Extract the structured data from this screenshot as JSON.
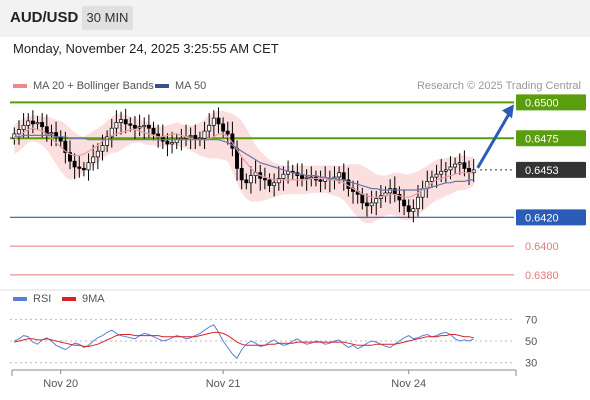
{
  "header": {
    "pair": "AUD/USD",
    "timeframe": "30 MIN",
    "datetime": "Monday, November 24, 2025 3:25:55 AM CET"
  },
  "legend": {
    "bollinger_label": "MA 20 + Bollinger Bands",
    "ma50_label": "MA 50",
    "credit": "Research © 2025 Trading Central",
    "rsi_label": "RSI",
    "rsi_ma_label": "9MA"
  },
  "colors": {
    "resistance": "#5a9e0f",
    "support": "#2a5cb8",
    "target_low": "#e37b7b",
    "bull_candle": "#ffffff",
    "bear_candle": "#000000",
    "bollinger_fill": "#f9d0d0",
    "ma20": "#e9a0a0",
    "ma50": "#6a78a8",
    "rsi": "#5b7ed6",
    "rsi_ma": "#d8232a",
    "arrow": "#2a5cb8",
    "current_price_bg": "#333333"
  },
  "chart_data": [
    {
      "type": "candlestick",
      "x_labels": [
        "Nov 20",
        "Nov 21",
        "Nov 24"
      ],
      "price_levels": [
        {
          "label": "0.6500",
          "value": 0.65,
          "kind": "resistance"
        },
        {
          "label": "0.6475",
          "value": 0.6475,
          "kind": "resistance"
        },
        {
          "label": "0.6453",
          "value": 0.6453,
          "kind": "current"
        },
        {
          "label": "0.6420",
          "value": 0.642,
          "kind": "pivot"
        },
        {
          "label": "0.6400",
          "value": 0.64,
          "kind": "support"
        },
        {
          "label": "0.6380",
          "value": 0.638,
          "kind": "support"
        }
      ],
      "close": [
        0.6478,
        0.6481,
        0.6484,
        0.6487,
        0.6485,
        0.6486,
        0.6483,
        0.6478,
        0.6479,
        0.6476,
        0.6473,
        0.6465,
        0.6459,
        0.6455,
        0.6454,
        0.6453,
        0.6458,
        0.6462,
        0.6466,
        0.647,
        0.6476,
        0.6482,
        0.6486,
        0.6488,
        0.6485,
        0.6484,
        0.6482,
        0.6483,
        0.6484,
        0.6482,
        0.6478,
        0.6476,
        0.6473,
        0.6471,
        0.6472,
        0.6474,
        0.6475,
        0.6476,
        0.6477,
        0.6474,
        0.6475,
        0.648,
        0.6484,
        0.6489,
        0.6485,
        0.648,
        0.6478,
        0.6468,
        0.6454,
        0.6446,
        0.6444,
        0.6449,
        0.6451,
        0.6447,
        0.6446,
        0.6442,
        0.6444,
        0.6447,
        0.645,
        0.6452,
        0.6451,
        0.6449,
        0.6447,
        0.6448,
        0.6448,
        0.6446,
        0.6445,
        0.6447,
        0.6446,
        0.6448,
        0.6451,
        0.6446,
        0.644,
        0.6438,
        0.6436,
        0.643,
        0.6428,
        0.643,
        0.6433,
        0.6435,
        0.6437,
        0.644,
        0.6436,
        0.6432,
        0.6428,
        0.6424,
        0.6426,
        0.6434,
        0.644,
        0.6445,
        0.6448,
        0.645,
        0.6452,
        0.6453,
        0.6455,
        0.6457,
        0.6458,
        0.6454,
        0.6451,
        0.6453
      ],
      "ma20": [
        0.6474,
        0.6477,
        0.6479,
        0.6481,
        0.6482,
        0.6481,
        0.648,
        0.6478,
        0.6475,
        0.6472,
        0.6469,
        0.6466,
        0.6464,
        0.6463,
        0.6463,
        0.6464,
        0.6466,
        0.6468,
        0.647,
        0.6473,
        0.6475,
        0.6477,
        0.6478,
        0.6479,
        0.648,
        0.6481,
        0.6481,
        0.648,
        0.6479,
        0.6478,
        0.6477,
        0.6476,
        0.6476,
        0.6477,
        0.6478,
        0.6478,
        0.6477,
        0.6476,
        0.6475,
        0.6474,
        0.6474,
        0.6474,
        0.6475,
        0.6476,
        0.6478,
        0.6478,
        0.6476,
        0.6472,
        0.6467,
        0.6462,
        0.6458,
        0.6454,
        0.6451,
        0.6449,
        0.6448,
        0.6447,
        0.6446,
        0.6446,
        0.6446,
        0.6446,
        0.6446,
        0.6446,
        0.6446,
        0.6446,
        0.6447,
        0.6447,
        0.6447,
        0.6447,
        0.6446,
        0.6446,
        0.6445,
        0.6444,
        0.6442,
        0.644,
        0.6438,
        0.6436,
        0.6435,
        0.6434,
        0.6434,
        0.6434,
        0.6435,
        0.6436,
        0.6436,
        0.6435,
        0.6434,
        0.6434,
        0.6435,
        0.6437,
        0.6439,
        0.6441,
        0.6444,
        0.6446,
        0.6447,
        0.6448,
        0.6449,
        0.645,
        0.6451,
        0.6451,
        0.6451,
        0.6452
      ],
      "bb_upper": [
        0.6484,
        0.6487,
        0.6489,
        0.649,
        0.6491,
        0.6491,
        0.649,
        0.649,
        0.6489,
        0.6488,
        0.6487,
        0.6485,
        0.6482,
        0.6479,
        0.6477,
        0.6476,
        0.6478,
        0.648,
        0.6482,
        0.6484,
        0.6487,
        0.649,
        0.6492,
        0.6492,
        0.6491,
        0.649,
        0.6489,
        0.6488,
        0.6487,
        0.6486,
        0.6484,
        0.6483,
        0.6483,
        0.6484,
        0.6485,
        0.6486,
        0.6485,
        0.6484,
        0.6484,
        0.6484,
        0.6486,
        0.6488,
        0.6491,
        0.6493,
        0.6494,
        0.6494,
        0.6493,
        0.6492,
        0.649,
        0.6487,
        0.6482,
        0.6476,
        0.647,
        0.6466,
        0.6463,
        0.646,
        0.6458,
        0.6457,
        0.6456,
        0.6456,
        0.6456,
        0.6456,
        0.6456,
        0.6456,
        0.6456,
        0.6456,
        0.6456,
        0.6456,
        0.6456,
        0.6456,
        0.6456,
        0.6456,
        0.6457,
        0.6457,
        0.6457,
        0.6456,
        0.6454,
        0.6452,
        0.645,
        0.6449,
        0.6449,
        0.645,
        0.6451,
        0.6451,
        0.645,
        0.645,
        0.6451,
        0.6452,
        0.6454,
        0.6456,
        0.6458,
        0.646,
        0.6461,
        0.6461,
        0.6462,
        0.6462,
        0.6463,
        0.6463,
        0.6462,
        0.6462
      ],
      "bb_lower": [
        0.6464,
        0.6466,
        0.6469,
        0.6472,
        0.6473,
        0.6472,
        0.647,
        0.6467,
        0.6462,
        0.6457,
        0.6452,
        0.6448,
        0.6446,
        0.6447,
        0.6449,
        0.6452,
        0.6454,
        0.6456,
        0.6458,
        0.6461,
        0.6463,
        0.6465,
        0.6465,
        0.6467,
        0.6469,
        0.6471,
        0.6472,
        0.6472,
        0.6471,
        0.647,
        0.647,
        0.6469,
        0.6469,
        0.647,
        0.6471,
        0.647,
        0.6469,
        0.6468,
        0.6466,
        0.6465,
        0.6463,
        0.6462,
        0.6461,
        0.6461,
        0.6461,
        0.646,
        0.6459,
        0.6452,
        0.6444,
        0.6437,
        0.6433,
        0.6431,
        0.6431,
        0.6431,
        0.6432,
        0.6433,
        0.6434,
        0.6435,
        0.6436,
        0.6436,
        0.6436,
        0.6436,
        0.6436,
        0.6436,
        0.6437,
        0.6437,
        0.6437,
        0.6437,
        0.6436,
        0.6435,
        0.6434,
        0.6432,
        0.6428,
        0.6424,
        0.642,
        0.6417,
        0.6416,
        0.6416,
        0.6418,
        0.6419,
        0.6421,
        0.6422,
        0.6421,
        0.6419,
        0.6418,
        0.6418,
        0.6419,
        0.6422,
        0.6424,
        0.6427,
        0.643,
        0.6432,
        0.6433,
        0.6435,
        0.6436,
        0.6438,
        0.6439,
        0.6439,
        0.644,
        0.6442
      ],
      "ma50": [
        0.6476,
        0.6476,
        0.6477,
        0.6477,
        0.6477,
        0.6477,
        0.6477,
        0.6477,
        0.6477,
        0.6476,
        0.6476,
        0.6476,
        0.6475,
        0.6475,
        0.6475,
        0.6475,
        0.6474,
        0.6474,
        0.6474,
        0.6474,
        0.6474,
        0.6474,
        0.6474,
        0.6474,
        0.6474,
        0.6474,
        0.6474,
        0.6474,
        0.6474,
        0.6474,
        0.6474,
        0.6474,
        0.6474,
        0.6474,
        0.6474,
        0.6474,
        0.6474,
        0.6474,
        0.6474,
        0.6474,
        0.6474,
        0.6474,
        0.6474,
        0.6474,
        0.6474,
        0.6473,
        0.6472,
        0.647,
        0.6468,
        0.6466,
        0.6464,
        0.6462,
        0.646,
        0.6458,
        0.6457,
        0.6456,
        0.6455,
        0.6454,
        0.6453,
        0.6452,
        0.6451,
        0.645,
        0.645,
        0.6449,
        0.6449,
        0.6449,
        0.6448,
        0.6448,
        0.6447,
        0.6447,
        0.6446,
        0.6446,
        0.6445,
        0.6444,
        0.6443,
        0.6442,
        0.6441,
        0.644,
        0.644,
        0.6439,
        0.6439,
        0.6439,
        0.6439,
        0.6439,
        0.6439,
        0.6439,
        0.6439,
        0.6439,
        0.644,
        0.644,
        0.6441,
        0.6442,
        0.6443,
        0.6444,
        0.6444,
        0.6445,
        0.6445,
        0.6445,
        0.6446,
        0.6446
      ]
    },
    {
      "type": "line",
      "x_labels": [
        "Nov 20",
        "Nov 21",
        "Nov 24"
      ],
      "y_ticks": [
        70,
        50,
        30
      ],
      "ylim": [
        25,
        75
      ],
      "series": [
        {
          "name": "RSI",
          "values": [
            50,
            52,
            55,
            54,
            49,
            47,
            51,
            53,
            50,
            46,
            44,
            42,
            45,
            48,
            47,
            44,
            46,
            50,
            53,
            55,
            58,
            60,
            57,
            55,
            54,
            53,
            52,
            55,
            57,
            56,
            54,
            52,
            50,
            51,
            53,
            55,
            54,
            52,
            53,
            55,
            57,
            60,
            63,
            65,
            58,
            50,
            44,
            38,
            34,
            42,
            47,
            50,
            48,
            45,
            46,
            49,
            51,
            48,
            46,
            47,
            50,
            52,
            49,
            47,
            48,
            50,
            49,
            47,
            48,
            50,
            51,
            47,
            44,
            46,
            43,
            45,
            48,
            50,
            49,
            47,
            45,
            44,
            47,
            50,
            53,
            55,
            52,
            53,
            55,
            56,
            54,
            55,
            57,
            58,
            56,
            52,
            50,
            51,
            50,
            52
          ]
        },
        {
          "name": "9MA",
          "values": [
            49,
            50,
            51,
            52,
            52,
            51,
            51,
            52,
            51,
            50,
            49,
            48,
            47,
            46,
            46,
            45,
            45,
            46,
            47,
            49,
            51,
            53,
            55,
            56,
            56,
            56,
            55,
            55,
            55,
            55,
            55,
            55,
            54,
            54,
            54,
            54,
            54,
            54,
            54,
            54,
            55,
            56,
            57,
            58,
            58,
            57,
            55,
            52,
            49,
            47,
            46,
            46,
            46,
            46,
            46,
            47,
            47,
            48,
            48,
            48,
            48,
            49,
            49,
            49,
            49,
            49,
            49,
            49,
            49,
            49,
            49,
            49,
            48,
            47,
            46,
            46,
            46,
            46,
            47,
            47,
            47,
            47,
            47,
            48,
            49,
            50,
            51,
            52,
            53,
            54,
            54,
            54,
            55,
            55,
            56,
            56,
            55,
            54,
            54,
            53
          ]
        }
      ]
    }
  ]
}
